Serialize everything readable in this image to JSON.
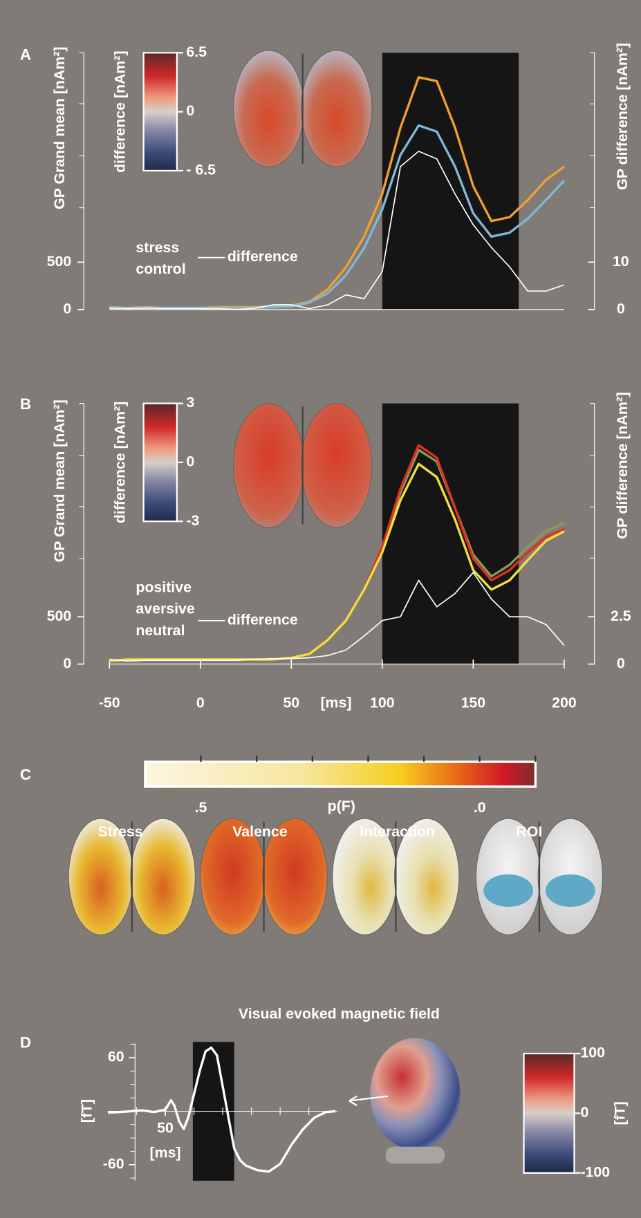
{
  "chart_data": [
    {
      "type": "line",
      "panel": "A",
      "ylabel": "GP Grand mean [nAm²]",
      "y2label": "GP difference [nAm²]",
      "x": [
        -50,
        -40,
        -30,
        -20,
        -10,
        0,
        10,
        20,
        30,
        40,
        50,
        60,
        70,
        80,
        90,
        100,
        110,
        120,
        130,
        140,
        150,
        160,
        170,
        180,
        190,
        200
      ],
      "xlim": [
        -50,
        200
      ],
      "ylim": [
        0,
        2710
      ],
      "yticks": [
        0,
        500
      ],
      "y_minor_ticks": [
        1074,
        1623,
        2172,
        2710
      ],
      "y2lim": [
        0,
        54.2
      ],
      "y2ticks": [
        0,
        10
      ],
      "y2_minor_ticks": [
        21.5,
        32.5,
        43.4,
        54.2
      ],
      "highlight": [
        100,
        175
      ],
      "series": [
        {
          "name": "stress",
          "color": "#f0a030",
          "values": [
            25,
            16,
            25,
            16,
            16,
            16,
            25,
            25,
            25,
            33,
            41,
            82,
            213,
            443,
            770,
            1221,
            1918,
            2451,
            2410,
            1918,
            1303,
            934,
            975,
            1156,
            1369,
            1508
          ]
        },
        {
          "name": "control",
          "color": "#80b8d8",
          "values": [
            16,
            16,
            16,
            16,
            16,
            16,
            16,
            16,
            16,
            25,
            33,
            74,
            172,
            361,
            648,
            1057,
            1631,
            1943,
            1877,
            1508,
            1016,
            770,
            811,
            959,
            1156,
            1361
          ]
        },
        {
          "name": "difference",
          "color": "#ffffff",
          "axis": "y2",
          "values": [
            0.3,
            0.2,
            0.3,
            0.2,
            0.2,
            0.2,
            0.2,
            0,
            0.3,
            1.0,
            1.0,
            0.2,
            1.0,
            3.1,
            2.3,
            8.0,
            30.2,
            33.4,
            31.8,
            24.4,
            17.9,
            13.1,
            9.0,
            3.9,
            3.9,
            5.2
          ]
        }
      ],
      "colorbar": {
        "label": "difference [nAm²]",
        "lim": [
          -6.5,
          6.5
        ],
        "ticks": [
          6.5,
          0,
          {
            "value": -6.5,
            "label": "- 6.5"
          }
        ]
      }
    },
    {
      "type": "line",
      "panel": "B",
      "ylabel": "GP Grand mean [nAm²]",
      "y2label": "GP difference [nAm²]",
      "xlabel": "[ms]",
      "x": [
        -50,
        -40,
        -30,
        -20,
        -10,
        0,
        10,
        20,
        30,
        40,
        50,
        60,
        70,
        80,
        90,
        100,
        110,
        120,
        130,
        140,
        150,
        160,
        170,
        180,
        190,
        200
      ],
      "xlim": [
        -50,
        200
      ],
      "xticks": [
        -50,
        0,
        50,
        100,
        150,
        200
      ],
      "ylim": [
        0,
        2754
      ],
      "yticks": [
        0,
        500
      ],
      "y_minor_ticks": [
        1115,
        1664,
        2205,
        2754
      ],
      "y2lim": [
        0,
        13.77
      ],
      "y2ticks": [
        0,
        2.5
      ],
      "y2_minor_ticks": [
        5.6,
        8.3,
        11.0,
        13.77
      ],
      "highlight": [
        100,
        175
      ],
      "series": [
        {
          "name": "positive",
          "color": "#8a9a5b",
          "values": [
            33,
            49,
            49,
            49,
            49,
            49,
            49,
            49,
            49,
            49,
            66,
            107,
            254,
            459,
            787,
            1213,
            1811,
            2262,
            2139,
            1648,
            1156,
            926,
            1049,
            1238,
            1402,
            1492
          ]
        },
        {
          "name": "aversive",
          "color": "#e03020",
          "values": [
            33,
            49,
            49,
            49,
            49,
            49,
            49,
            49,
            49,
            49,
            66,
            107,
            254,
            459,
            787,
            1238,
            1852,
            2312,
            2180,
            1648,
            1115,
            885,
            992,
            1180,
            1344,
            1426
          ]
        },
        {
          "name": "neutral",
          "color": "#f0e040",
          "values": [
            33,
            49,
            49,
            49,
            49,
            49,
            49,
            49,
            49,
            49,
            66,
            107,
            254,
            459,
            787,
            1180,
            1730,
            2115,
            1975,
            1525,
            992,
            787,
            885,
            1098,
            1303,
            1402
          ]
        },
        {
          "name": "difference",
          "color": "#ffffff",
          "axis": "y2",
          "values": [
            0.25,
            0.16,
            0.2,
            0.2,
            0.2,
            0.2,
            0.2,
            0.2,
            0.25,
            0.29,
            0.29,
            0.33,
            0.45,
            0.74,
            1.48,
            2.3,
            2.5,
            4.43,
            3.03,
            3.73,
            4.84,
            3.44,
            2.5,
            2.5,
            2.09,
            0.98
          ]
        }
      ],
      "colorbar": {
        "label": "difference [nAm²]",
        "lim": [
          -3,
          3
        ],
        "ticks": [
          3,
          0,
          -3
        ]
      }
    },
    {
      "type": "colorbar",
      "panel": "C",
      "label": "p(F)",
      "lim": [
        0.6,
        -0.1
      ],
      "ticks": [
        {
          "value": 0.5,
          "label": ".5"
        },
        {
          "value": 0,
          "label": ".0"
        }
      ],
      "minor_ticks": [
        0.4,
        0.3,
        0.2,
        0.1,
        -0.1
      ],
      "brains": [
        "Stress",
        "Valence",
        "Interaction",
        "ROI"
      ],
      "roi_color": "#5fa8c8"
    },
    {
      "type": "line",
      "panel": "D",
      "title": "Visual evoked magnetic field",
      "ylabel": "[fT]",
      "xlabel": "[ms]",
      "x": [
        0,
        10,
        20,
        30,
        40,
        50,
        55,
        58,
        62,
        66,
        70,
        75,
        80,
        85,
        90,
        95,
        100,
        105,
        110,
        115,
        120,
        130,
        140,
        150,
        160,
        170,
        180,
        190,
        198
      ],
      "xlim": [
        0,
        200
      ],
      "xticks": [
        50
      ],
      "x_minor_ticks": [
        25,
        75,
        100,
        125,
        150,
        175
      ],
      "ylim": [
        -78,
        76
      ],
      "yticks": [
        60,
        -60
      ],
      "y_minor_ticks": [
        -75,
        -45,
        -30,
        -15,
        15,
        30,
        45,
        75
      ],
      "highlight": [
        74,
        110
      ],
      "series": [
        {
          "color": "#ffffff",
          "values": [
            -1.7,
            -0.9,
            0,
            0.9,
            -0.9,
            1.7,
            12.2,
            6.1,
            -11.3,
            -20,
            -7,
            19.1,
            45.2,
            67,
            71.3,
            62.6,
            27.8,
            -7,
            -41.7,
            -54.8,
            -60.9,
            -66.1,
            -67.8,
            -59.1,
            -37.4,
            -20,
            -7,
            -0.9,
            0
          ]
        }
      ],
      "colorbar": {
        "label": "[fT]",
        "lim": [
          -100,
          100
        ],
        "ticks": [
          100,
          0,
          -100
        ]
      }
    }
  ]
}
